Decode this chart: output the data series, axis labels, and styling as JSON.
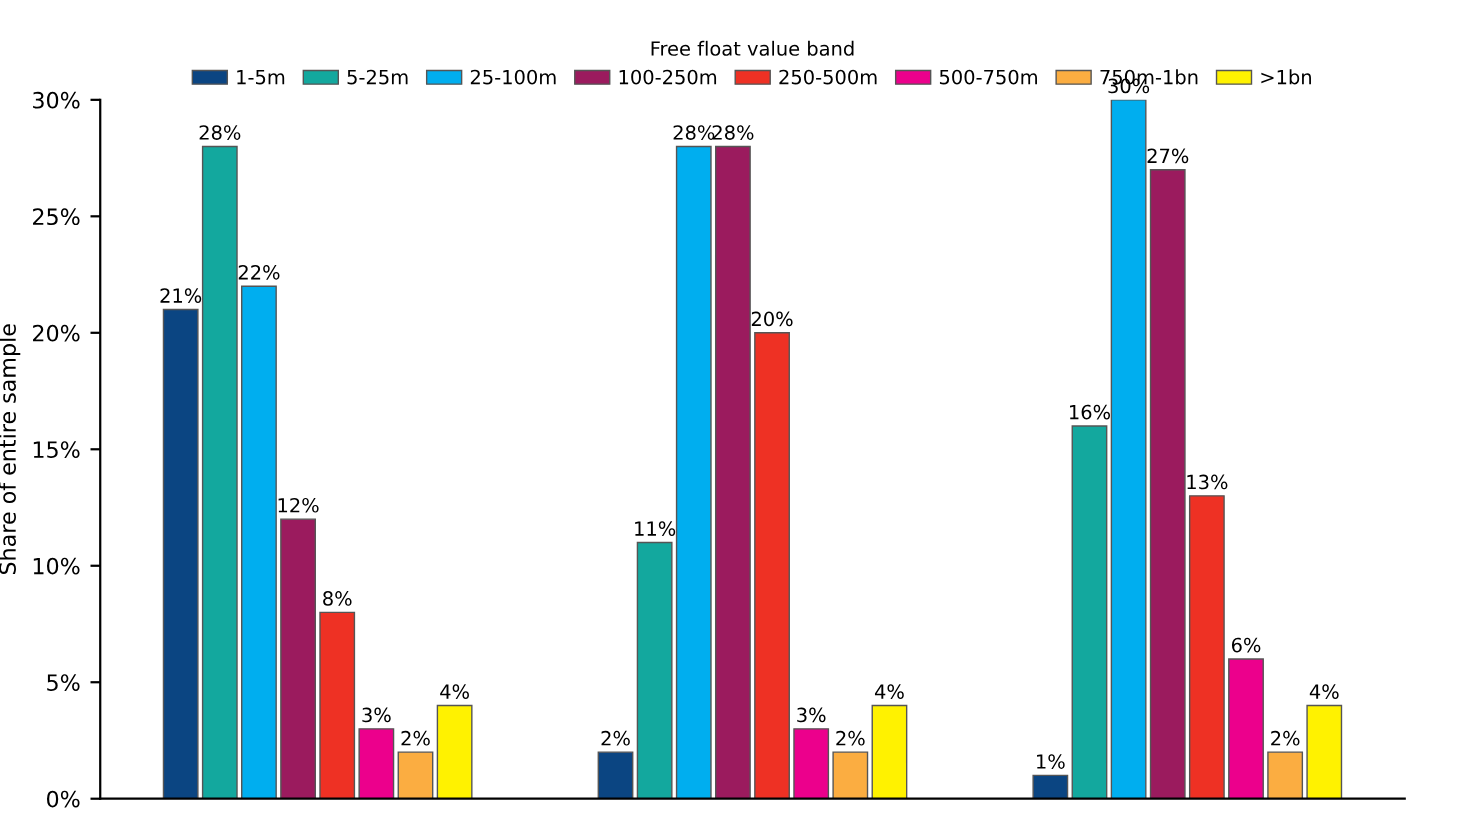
{
  "chart_data": {
    "type": "bar",
    "ylabel": "Share of entire sample",
    "legend_title": "Free float value band",
    "categories": [
      null,
      null,
      null
    ],
    "series": [
      {
        "name": "1-5m",
        "color": "#0b4582",
        "values": [
          21,
          2,
          1
        ],
        "value_labels": [
          "21%",
          "2%",
          "1%"
        ]
      },
      {
        "name": "5-25m",
        "color": "#13a89e",
        "values": [
          28,
          11,
          16
        ],
        "value_labels": [
          "28%",
          "11%",
          "16%"
        ]
      },
      {
        "name": "25-100m",
        "color": "#00aeef",
        "values": [
          22,
          28,
          30
        ],
        "value_labels": [
          "22%",
          "28%",
          "30%"
        ]
      },
      {
        "name": "100-250m",
        "color": "#9b1b5e",
        "values": [
          12,
          28,
          27
        ],
        "value_labels": [
          "12%",
          "28%",
          "27%"
        ]
      },
      {
        "name": "250-500m",
        "color": "#ee3124",
        "values": [
          8,
          20,
          13
        ],
        "value_labels": [
          "8%",
          "20%",
          "13%"
        ]
      },
      {
        "name": "500-750m",
        "color": "#ec008c",
        "values": [
          3,
          3,
          6
        ],
        "value_labels": [
          "3%",
          "3%",
          "6%"
        ]
      },
      {
        "name": "750m-1bn",
        "color": "#fbad41",
        "values": [
          2,
          2,
          2
        ],
        "value_labels": [
          "2%",
          "2%",
          "2%"
        ]
      },
      {
        "name": ">1bn",
        "color": "#fff200",
        "values": [
          4,
          4,
          4
        ],
        "value_labels": [
          "4%",
          "4%",
          "4%"
        ]
      }
    ],
    "ylim": [
      0,
      30
    ],
    "yticks": [
      {
        "value": 0,
        "label": "0%"
      },
      {
        "value": 5,
        "label": "5%"
      },
      {
        "value": 10,
        "label": "10%"
      },
      {
        "value": 15,
        "label": "15%"
      },
      {
        "value": 20,
        "label": "20%"
      },
      {
        "value": 25,
        "label": "25%"
      },
      {
        "value": 30,
        "label": "30%"
      }
    ],
    "grid": false,
    "legend": "top"
  }
}
